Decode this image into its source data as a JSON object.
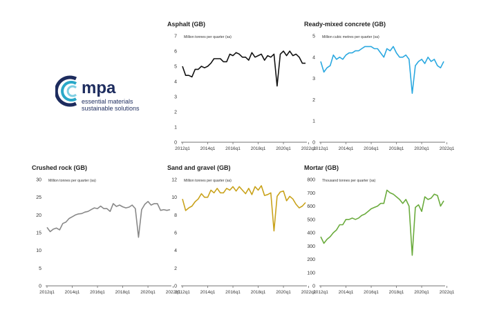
{
  "logo": {
    "word": "mpa",
    "tagline_1": "essential materials",
    "tagline_2": "sustainable solutions",
    "colors": {
      "navy": "#1d2c5e",
      "teal": "#2aa8c8",
      "light_teal": "#7fcfe3"
    }
  },
  "chart_data": [
    {
      "type": "line",
      "title": "Asphalt (GB)",
      "ylabel": "Million tonnes per quarter (sa)",
      "ylim": [
        0,
        7
      ],
      "yticks": [
        0,
        1,
        2,
        3,
        4,
        5,
        6,
        7
      ],
      "xticks": [
        "2012q1",
        "2014q1",
        "2016q1",
        "2018q1",
        "2020q1",
        "2022q1"
      ],
      "color": "#111111",
      "series": [
        {
          "name": "Asphalt",
          "values": [
            5.0,
            4.4,
            4.4,
            4.3,
            4.8,
            4.8,
            5.0,
            4.9,
            5.0,
            5.2,
            5.5,
            5.5,
            5.5,
            5.3,
            5.3,
            5.8,
            5.7,
            5.9,
            5.8,
            5.6,
            5.6,
            5.4,
            5.9,
            5.6,
            5.7,
            5.8,
            5.4,
            5.7,
            5.6,
            5.8,
            3.7,
            5.8,
            6.0,
            5.7,
            6.0,
            5.7,
            5.8,
            5.6,
            5.2,
            5.2
          ]
        }
      ]
    },
    {
      "type": "line",
      "title": "Ready-mixed concrete (GB)",
      "ylabel": "Million cubic metres per quarter (sa)",
      "ylim": [
        0,
        5
      ],
      "yticks": [
        0,
        1,
        2,
        3,
        4,
        5
      ],
      "xticks": [
        "2012q1",
        "2014q1",
        "2016q1",
        "2018q1",
        "2020q1",
        "2022q1"
      ],
      "color": "#2aa8e0",
      "series": [
        {
          "name": "Ready-mixed concrete",
          "values": [
            3.8,
            3.3,
            3.5,
            3.6,
            4.1,
            3.9,
            4.0,
            3.9,
            4.1,
            4.2,
            4.2,
            4.3,
            4.3,
            4.4,
            4.5,
            4.5,
            4.5,
            4.4,
            4.4,
            4.2,
            4.0,
            4.4,
            4.3,
            4.5,
            4.2,
            4.0,
            4.0,
            4.1,
            3.9,
            2.3,
            3.6,
            3.8,
            3.9,
            3.7,
            4.0,
            3.8,
            3.9,
            3.6,
            3.5,
            3.8
          ]
        }
      ]
    },
    {
      "type": "line",
      "title": "Crushed rock (GB)",
      "ylabel": "Million tonnes per quarter (sa)",
      "ylim": [
        0,
        30
      ],
      "yticks": [
        0,
        5,
        10,
        15,
        20,
        25,
        30
      ],
      "xticks": [
        "2012q1",
        "2014q1",
        "2016q1",
        "2018q1",
        "2020q1",
        "2022q1"
      ],
      "color": "#888888",
      "series": [
        {
          "name": "Crushed rock",
          "values": [
            16.5,
            15.3,
            16.0,
            16.3,
            15.8,
            17.6,
            18.0,
            19.0,
            19.5,
            20.0,
            20.3,
            20.4,
            20.8,
            21.0,
            21.5,
            22.0,
            21.8,
            22.5,
            21.8,
            21.8,
            21.0,
            23.2,
            22.4,
            22.8,
            22.3,
            22.0,
            22.2,
            22.8,
            21.8,
            13.7,
            21.5,
            23.0,
            23.8,
            22.8,
            23.2,
            23.2,
            21.3,
            21.5,
            21.3,
            21.5
          ]
        }
      ]
    },
    {
      "type": "line",
      "title": "Sand and gravel (GB)",
      "ylabel": "Million tonnes per quarter (sa)",
      "ylim": [
        0,
        12
      ],
      "yticks": [
        0,
        2,
        4,
        6,
        8,
        10,
        12
      ],
      "xticks": [
        "2012q1",
        "2014q1",
        "2016q1",
        "2018q1",
        "2020q1",
        "2022q1"
      ],
      "color": "#c9a21a",
      "series": [
        {
          "name": "Sand and gravel",
          "values": [
            9.8,
            8.5,
            8.8,
            9.0,
            9.5,
            9.8,
            10.4,
            10.0,
            10.0,
            10.8,
            10.5,
            11.0,
            10.5,
            10.5,
            11.0,
            10.8,
            11.2,
            10.7,
            11.2,
            10.8,
            10.4,
            11.0,
            10.3,
            11.2,
            10.8,
            11.3,
            10.2,
            10.3,
            10.5,
            6.2,
            10.1,
            10.6,
            10.7,
            9.6,
            10.1,
            9.8,
            9.2,
            8.8,
            9.0,
            9.4
          ]
        }
      ]
    },
    {
      "type": "line",
      "title": "Mortar (GB)",
      "ylabel": "Thousand tonnes per quarter (sa)",
      "ylim": [
        0,
        800
      ],
      "yticks": [
        0,
        100,
        200,
        300,
        400,
        500,
        600,
        700,
        800
      ],
      "xticks": [
        "2012q1",
        "2014q1",
        "2016q1",
        "2018q1",
        "2020q1",
        "2022q1"
      ],
      "color": "#6aab3c",
      "series": [
        {
          "name": "Mortar",
          "values": [
            370,
            320,
            350,
            370,
            400,
            420,
            460,
            460,
            500,
            500,
            510,
            500,
            510,
            530,
            540,
            560,
            580,
            590,
            600,
            620,
            620,
            720,
            700,
            690,
            670,
            650,
            620,
            650,
            600,
            230,
            590,
            610,
            560,
            670,
            650,
            660,
            690,
            680,
            600,
            640
          ]
        }
      ]
    }
  ]
}
